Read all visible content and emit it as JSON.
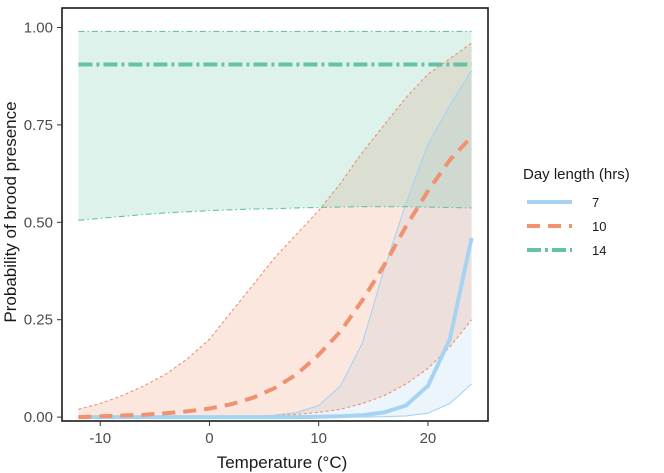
{
  "chart_data": {
    "type": "line",
    "title": "",
    "xlabel": "Temperature (°C)",
    "ylabel": "Probability of brood presence",
    "xlim": [
      -13.5,
      25.5
    ],
    "ylim": [
      -0.01,
      1.05
    ],
    "x_ticks": [
      -10,
      0,
      10,
      20
    ],
    "x_tick_labels": [
      "-10",
      "0",
      "10",
      "20"
    ],
    "y_ticks": [
      0,
      0.25,
      0.5,
      0.75,
      1.0
    ],
    "y_tick_labels": [
      "0.00",
      "0.25",
      "0.50",
      "0.75",
      "1.00"
    ],
    "grid": false,
    "legend": {
      "title": "Day length (hrs)",
      "placement": "right"
    },
    "x": [
      -12,
      -10,
      -8,
      -6,
      -4,
      -2,
      0,
      2,
      4,
      6,
      8,
      10,
      12,
      14,
      16,
      18,
      20,
      22,
      24
    ],
    "series": [
      {
        "name": "7",
        "color": "#a7d3f3",
        "dash": "solid",
        "values": [
          0,
          0,
          0,
          0,
          0,
          0,
          0,
          0,
          0,
          0,
          0,
          0.001,
          0.002,
          0.005,
          0.012,
          0.03,
          0.08,
          0.2,
          0.46
        ],
        "lower": [
          0,
          0,
          0,
          0,
          0,
          0,
          0,
          0,
          0,
          0,
          0,
          0,
          0,
          0,
          0.001,
          0.003,
          0.01,
          0.035,
          0.085
        ],
        "upper": [
          0,
          0,
          0,
          0,
          0,
          0,
          0,
          0.001,
          0.002,
          0.005,
          0.012,
          0.03,
          0.08,
          0.19,
          0.38,
          0.55,
          0.7,
          0.8,
          0.89
        ]
      },
      {
        "name": "10",
        "color": "#f0916f",
        "dash": "dashed",
        "values": [
          0,
          0.002,
          0.004,
          0.006,
          0.01,
          0.015,
          0.022,
          0.033,
          0.05,
          0.075,
          0.11,
          0.16,
          0.22,
          0.3,
          0.39,
          0.49,
          0.58,
          0.66,
          0.72
        ],
        "lower": [
          0,
          0,
          0,
          0,
          0,
          0,
          0,
          0.001,
          0.002,
          0.004,
          0.007,
          0.012,
          0.02,
          0.035,
          0.055,
          0.085,
          0.125,
          0.18,
          0.25
        ],
        "upper": [
          0.02,
          0.035,
          0.055,
          0.08,
          0.11,
          0.15,
          0.2,
          0.27,
          0.34,
          0.41,
          0.47,
          0.53,
          0.6,
          0.68,
          0.75,
          0.82,
          0.88,
          0.92,
          0.96
        ]
      },
      {
        "name": "14",
        "color": "#66c2a5",
        "dash": "dotdash",
        "values": [
          0.905,
          0.905,
          0.905,
          0.905,
          0.905,
          0.905,
          0.905,
          0.905,
          0.905,
          0.905,
          0.905,
          0.905,
          0.905,
          0.905,
          0.905,
          0.905,
          0.905,
          0.905,
          0.905
        ],
        "lower": [
          0.505,
          0.51,
          0.515,
          0.52,
          0.524,
          0.527,
          0.53,
          0.532,
          0.534,
          0.535,
          0.537,
          0.538,
          0.539,
          0.54,
          0.54,
          0.54,
          0.539,
          0.538,
          0.537
        ],
        "upper": [
          0.99,
          0.99,
          0.99,
          0.99,
          0.99,
          0.99,
          0.99,
          0.99,
          0.99,
          0.99,
          0.99,
          0.99,
          0.99,
          0.99,
          0.99,
          0.99,
          0.99,
          0.99,
          0.99
        ]
      }
    ]
  }
}
